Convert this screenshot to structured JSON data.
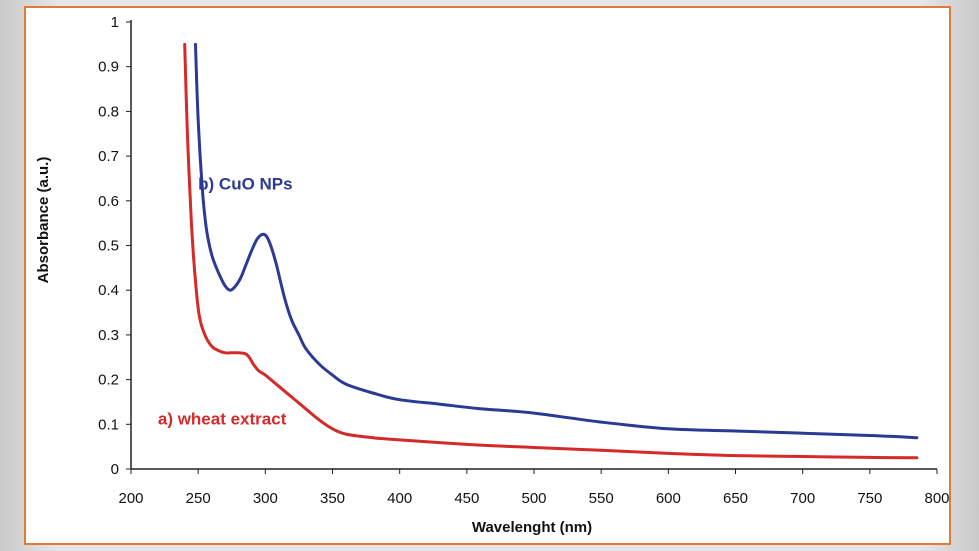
{
  "chart_data": {
    "type": "line",
    "title": "",
    "xlabel": "Wavelenght (nm)",
    "ylabel": "Absorbance (a.u.)",
    "xlim": [
      200,
      800
    ],
    "ylim": [
      0,
      1
    ],
    "x_ticks": [
      200,
      250,
      300,
      350,
      400,
      450,
      500,
      550,
      600,
      650,
      700,
      750,
      800
    ],
    "y_ticks": [
      0,
      0.1,
      0.2,
      0.3,
      0.4,
      0.5,
      0.6,
      0.7,
      0.8,
      0.9,
      1
    ],
    "y_tick_labels": [
      "0",
      "0.1",
      "0.2",
      "0.3",
      "0.4",
      "0.5",
      "0.6",
      "0.7",
      "0.8",
      "0.9",
      "1"
    ],
    "grid": false,
    "series": [
      {
        "name": "b) CuO NPs",
        "color": "#2b3a93",
        "x": [
          248,
          250,
          253,
          256,
          260,
          265,
          270,
          274,
          278,
          282,
          286,
          290,
          294,
          298,
          301,
          304,
          308,
          312,
          316,
          320,
          325,
          330,
          340,
          350,
          360,
          380,
          400,
          430,
          460,
          500,
          550,
          600,
          650,
          700,
          750,
          785
        ],
        "y": [
          0.95,
          0.78,
          0.63,
          0.54,
          0.48,
          0.44,
          0.41,
          0.4,
          0.41,
          0.43,
          0.46,
          0.49,
          0.515,
          0.525,
          0.52,
          0.5,
          0.46,
          0.41,
          0.365,
          0.33,
          0.3,
          0.27,
          0.235,
          0.21,
          0.19,
          0.17,
          0.155,
          0.145,
          0.135,
          0.125,
          0.105,
          0.09,
          0.085,
          0.08,
          0.075,
          0.07
        ]
      },
      {
        "name": "a) wheat extract",
        "color": "#d42a2a",
        "x": [
          240,
          242,
          245,
          248,
          251,
          255,
          260,
          265,
          270,
          275,
          280,
          285,
          288,
          291,
          295,
          300,
          310,
          320,
          330,
          340,
          350,
          360,
          380,
          400,
          450,
          500,
          550,
          600,
          650,
          700,
          750,
          785
        ],
        "y": [
          0.95,
          0.75,
          0.55,
          0.42,
          0.34,
          0.3,
          0.275,
          0.265,
          0.26,
          0.26,
          0.26,
          0.258,
          0.25,
          0.235,
          0.22,
          0.21,
          0.185,
          0.16,
          0.135,
          0.11,
          0.09,
          0.078,
          0.07,
          0.065,
          0.055,
          0.048,
          0.042,
          0.035,
          0.03,
          0.028,
          0.026,
          0.025
        ]
      }
    ],
    "annotations": [
      {
        "text": "b) CuO NPs",
        "x": 250,
        "y": 0.625,
        "color": "#2b3a93"
      },
      {
        "text": "a) wheat extract",
        "x": 220,
        "y": 0.1,
        "color": "#d42a2a"
      }
    ]
  }
}
